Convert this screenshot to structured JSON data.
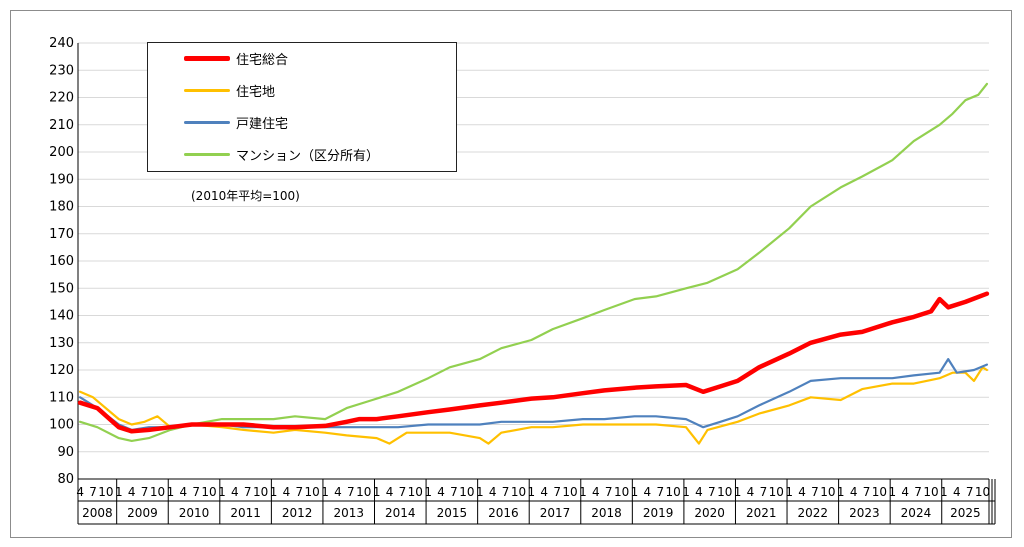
{
  "chart_data": {
    "type": "line",
    "title": "",
    "xlabel": "",
    "ylabel": "",
    "note": "(2010年平均=100)",
    "ylim": [
      80,
      240
    ],
    "yticks": [
      80,
      90,
      100,
      110,
      120,
      130,
      140,
      150,
      160,
      170,
      180,
      190,
      200,
      210,
      220,
      230,
      240
    ],
    "x_month_labels": [
      "4",
      "7",
      "10",
      "1"
    ],
    "years": [
      "2008",
      "2009",
      "2010",
      "2011",
      "2012",
      "2013",
      "2014",
      "2015",
      "2016",
      "2017",
      "2018",
      "2019",
      "2020",
      "2021",
      "2022",
      "2023",
      "2024",
      "2025"
    ],
    "grid": true,
    "legend_position": "top-left",
    "x_range": [
      "2008-04",
      "2025-11"
    ],
    "series": [
      {
        "name": "住宅総合",
        "color": "#ff0000",
        "points": [
          [
            "2008-04",
            108
          ],
          [
            "2008-08",
            106
          ],
          [
            "2009-01",
            99
          ],
          [
            "2009-04",
            97.5
          ],
          [
            "2009-08",
            98
          ],
          [
            "2010-01",
            99
          ],
          [
            "2010-06",
            100
          ],
          [
            "2011-01",
            100
          ],
          [
            "2011-06",
            100
          ],
          [
            "2012-01",
            99
          ],
          [
            "2012-06",
            99
          ],
          [
            "2013-01",
            99.5
          ],
          [
            "2013-06",
            101
          ],
          [
            "2013-09",
            102
          ],
          [
            "2014-01",
            102
          ],
          [
            "2014-06",
            103
          ],
          [
            "2015-01",
            104.5
          ],
          [
            "2015-06",
            105.5
          ],
          [
            "2016-01",
            107
          ],
          [
            "2016-06",
            108
          ],
          [
            "2017-01",
            109.5
          ],
          [
            "2017-06",
            110
          ],
          [
            "2018-01",
            111.5
          ],
          [
            "2018-06",
            112.5
          ],
          [
            "2019-01",
            113.5
          ],
          [
            "2019-06",
            114
          ],
          [
            "2020-01",
            114.5
          ],
          [
            "2020-05",
            112
          ],
          [
            "2020-09",
            114
          ],
          [
            "2021-01",
            116
          ],
          [
            "2021-06",
            121
          ],
          [
            "2022-01",
            126
          ],
          [
            "2022-06",
            130
          ],
          [
            "2023-01",
            133
          ],
          [
            "2023-06",
            134
          ],
          [
            "2024-01",
            137.5
          ],
          [
            "2024-06",
            139.5
          ],
          [
            "2024-10",
            141.5
          ],
          [
            "2024-12",
            146
          ],
          [
            "2025-02",
            143
          ],
          [
            "2025-06",
            145
          ],
          [
            "2025-11",
            148
          ]
        ]
      },
      {
        "name": "住宅地",
        "color": "#ffc000",
        "points": [
          [
            "2008-04",
            112
          ],
          [
            "2008-07",
            110
          ],
          [
            "2009-01",
            102
          ],
          [
            "2009-04",
            100
          ],
          [
            "2009-07",
            101
          ],
          [
            "2009-10",
            103
          ],
          [
            "2010-01",
            99
          ],
          [
            "2010-06",
            100
          ],
          [
            "2011-01",
            99
          ],
          [
            "2011-06",
            98
          ],
          [
            "2012-01",
            97
          ],
          [
            "2012-06",
            98
          ],
          [
            "2013-01",
            97
          ],
          [
            "2013-06",
            96
          ],
          [
            "2014-01",
            95
          ],
          [
            "2014-04",
            93
          ],
          [
            "2014-08",
            97
          ],
          [
            "2015-01",
            97
          ],
          [
            "2015-06",
            97
          ],
          [
            "2016-01",
            95
          ],
          [
            "2016-03",
            93
          ],
          [
            "2016-06",
            97
          ],
          [
            "2017-01",
            99
          ],
          [
            "2017-06",
            99
          ],
          [
            "2018-01",
            100
          ],
          [
            "2018-06",
            100
          ],
          [
            "2019-01",
            100
          ],
          [
            "2019-06",
            100
          ],
          [
            "2020-01",
            99
          ],
          [
            "2020-04",
            93
          ],
          [
            "2020-06",
            98
          ],
          [
            "2021-01",
            101
          ],
          [
            "2021-06",
            104
          ],
          [
            "2022-01",
            107
          ],
          [
            "2022-06",
            110
          ],
          [
            "2023-01",
            109
          ],
          [
            "2023-06",
            113
          ],
          [
            "2024-01",
            115
          ],
          [
            "2024-06",
            115
          ],
          [
            "2024-12",
            117
          ],
          [
            "2025-03",
            119
          ],
          [
            "2025-06",
            119
          ],
          [
            "2025-08",
            116
          ],
          [
            "2025-10",
            121
          ],
          [
            "2025-11",
            120
          ]
        ]
      },
      {
        "name": "戸建住宅",
        "color": "#4f81bd",
        "points": [
          [
            "2008-04",
            110
          ],
          [
            "2008-08",
            106
          ],
          [
            "2009-01",
            100
          ],
          [
            "2009-04",
            98
          ],
          [
            "2009-08",
            99
          ],
          [
            "2010-01",
            99
          ],
          [
            "2010-06",
            100
          ],
          [
            "2011-01",
            100
          ],
          [
            "2011-06",
            99
          ],
          [
            "2012-01",
            99
          ],
          [
            "2012-06",
            99
          ],
          [
            "2013-01",
            99
          ],
          [
            "2013-06",
            99
          ],
          [
            "2014-01",
            99
          ],
          [
            "2014-06",
            99
          ],
          [
            "2015-01",
            100
          ],
          [
            "2015-06",
            100
          ],
          [
            "2016-01",
            100
          ],
          [
            "2016-06",
            101
          ],
          [
            "2017-01",
            101
          ],
          [
            "2017-06",
            101
          ],
          [
            "2018-01",
            102
          ],
          [
            "2018-06",
            102
          ],
          [
            "2019-01",
            103
          ],
          [
            "2019-06",
            103
          ],
          [
            "2020-01",
            102
          ],
          [
            "2020-05",
            99
          ],
          [
            "2020-09",
            101
          ],
          [
            "2021-01",
            103
          ],
          [
            "2021-06",
            107
          ],
          [
            "2022-01",
            112
          ],
          [
            "2022-06",
            116
          ],
          [
            "2023-01",
            117
          ],
          [
            "2023-06",
            117
          ],
          [
            "2024-01",
            117
          ],
          [
            "2024-06",
            118
          ],
          [
            "2024-12",
            119
          ],
          [
            "2025-02",
            124
          ],
          [
            "2025-04",
            119
          ],
          [
            "2025-08",
            120
          ],
          [
            "2025-11",
            122
          ]
        ]
      },
      {
        "name": "マンション（区分所有）",
        "color": "#92d050",
        "points": [
          [
            "2008-04",
            101
          ],
          [
            "2008-08",
            99
          ],
          [
            "2009-01",
            95
          ],
          [
            "2009-04",
            94
          ],
          [
            "2009-08",
            95
          ],
          [
            "2010-01",
            98
          ],
          [
            "2010-06",
            100
          ],
          [
            "2011-01",
            102
          ],
          [
            "2011-06",
            102
          ],
          [
            "2012-01",
            102
          ],
          [
            "2012-06",
            103
          ],
          [
            "2013-01",
            102
          ],
          [
            "2013-06",
            106
          ],
          [
            "2013-12",
            109
          ],
          [
            "2014-06",
            112
          ],
          [
            "2015-01",
            117
          ],
          [
            "2015-06",
            121
          ],
          [
            "2016-01",
            124
          ],
          [
            "2016-06",
            128
          ],
          [
            "2017-01",
            131
          ],
          [
            "2017-06",
            135
          ],
          [
            "2018-01",
            139
          ],
          [
            "2018-06",
            142
          ],
          [
            "2019-01",
            146
          ],
          [
            "2019-06",
            147
          ],
          [
            "2020-01",
            150
          ],
          [
            "2020-06",
            152
          ],
          [
            "2021-01",
            157
          ],
          [
            "2021-06",
            163
          ],
          [
            "2022-01",
            172
          ],
          [
            "2022-06",
            180
          ],
          [
            "2023-01",
            187
          ],
          [
            "2023-06",
            191
          ],
          [
            "2024-01",
            197
          ],
          [
            "2024-06",
            204
          ],
          [
            "2024-12",
            210
          ],
          [
            "2025-03",
            214
          ],
          [
            "2025-06",
            219
          ],
          [
            "2025-09",
            221
          ],
          [
            "2025-11",
            225
          ]
        ]
      }
    ]
  }
}
